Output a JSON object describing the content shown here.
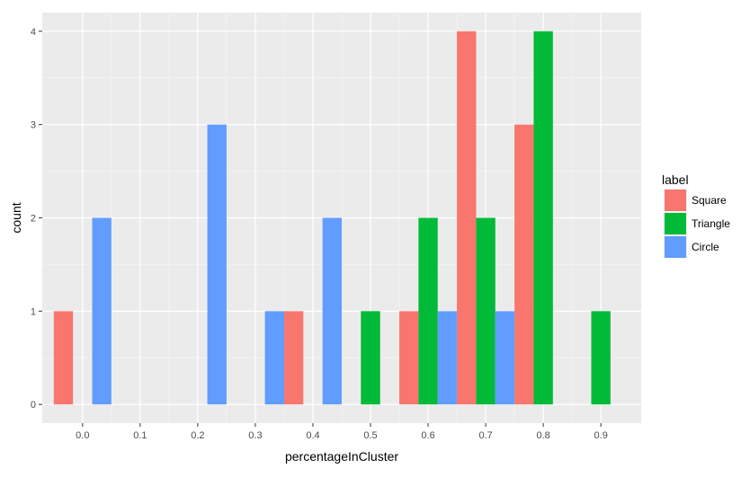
{
  "chart_data": {
    "type": "bar",
    "title": "",
    "xlabel": "percentageInCluster",
    "ylabel": "count",
    "xlim": [
      -0.07,
      0.97
    ],
    "ylim": [
      -0.2,
      4.2
    ],
    "x_ticks": [
      "0.0",
      "0.1",
      "0.2",
      "0.3",
      "0.4",
      "0.5",
      "0.6",
      "0.7",
      "0.8",
      "0.9"
    ],
    "y_ticks": [
      "0",
      "1",
      "2",
      "3",
      "4"
    ],
    "grid": true,
    "legend": {
      "title": "label",
      "position": "right"
    },
    "bin_width": 0.1,
    "x": [
      0.0,
      0.2,
      0.3,
      0.4,
      0.5,
      0.6,
      0.7,
      0.8,
      0.9
    ],
    "series": [
      {
        "name": "Square",
        "color": "#F8766D",
        "values": [
          1,
          0,
          0,
          1,
          0,
          1,
          4,
          3,
          0
        ]
      },
      {
        "name": "Triangle",
        "color": "#00BA38",
        "values": [
          0,
          0,
          0,
          0,
          1,
          2,
          2,
          4,
          1
        ]
      },
      {
        "name": "Circle",
        "color": "#619CFF",
        "values": [
          2,
          3,
          1,
          2,
          0,
          1,
          1,
          0,
          0
        ]
      }
    ]
  }
}
